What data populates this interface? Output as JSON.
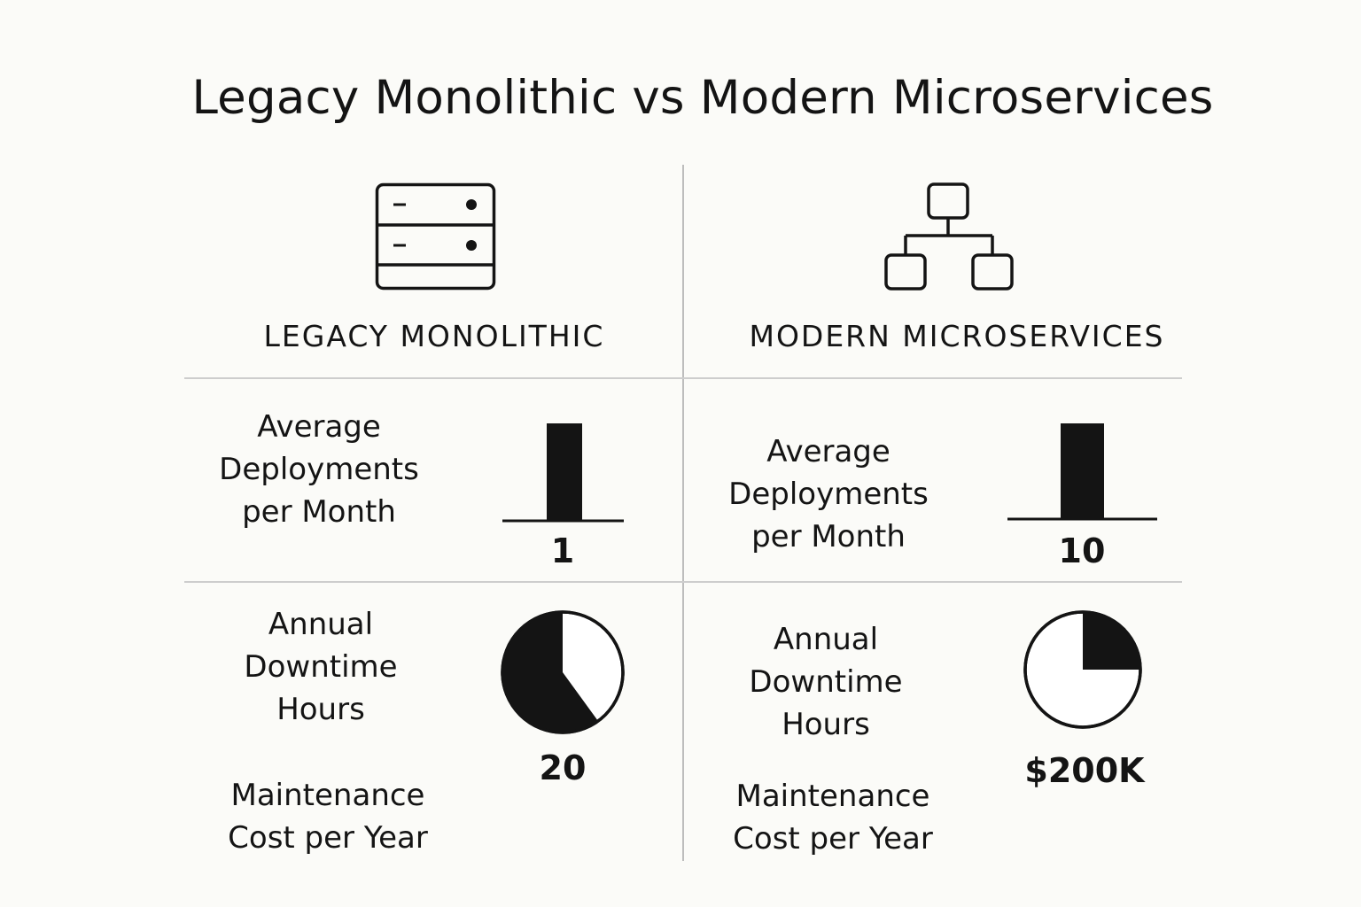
{
  "title": "Legacy Monolithic vs Modern Microservices",
  "columns": [
    {
      "heading": "LEGACY MONOLITHIC",
      "icon": "server-icon",
      "deployments_label": "Average\nDeployments\nper Month",
      "deployments_value": "1",
      "downtime_label": "Annual\nDowntime\nHours",
      "downtime_value": "20",
      "downtime_pie_fraction": 0.6,
      "maintenance_label": "Maintenance\nCost per Year"
    },
    {
      "heading": "MODERN MICROSERVICES",
      "icon": "network-hierarchy-icon",
      "deployments_label": "Average\nDeployments\nper Month",
      "deployments_value": "10",
      "downtime_label": "Annual\nDowntime\nHours",
      "downtime_value": "$200K",
      "downtime_pie_fraction": 0.25,
      "maintenance_label": "Maintenance\nCost per Year"
    }
  ],
  "colors": {
    "ink": "#141414",
    "background": "#fbfbf8",
    "divider": "#c8c8c8"
  }
}
